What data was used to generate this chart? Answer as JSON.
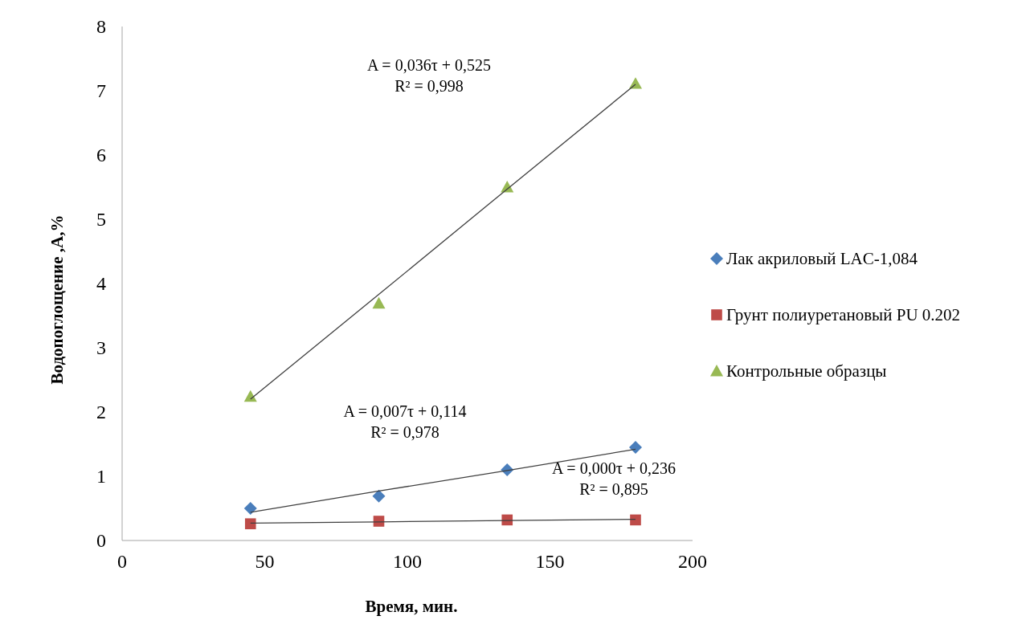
{
  "chart_data": {
    "type": "scatter",
    "xlabel": "Время, мин.",
    "ylabel": "Водопоглощение ,А,%",
    "xlim": [
      0,
      200
    ],
    "xticks": [
      0,
      50,
      100,
      150,
      200
    ],
    "ylim": [
      0,
      8
    ],
    "yticks": [
      0,
      1,
      2,
      3,
      4,
      5,
      6,
      7,
      8
    ],
    "grid": false,
    "legend": "right",
    "x": [
      45,
      90,
      135,
      180
    ],
    "series": [
      {
        "name": "Лак акриловый LAC-1,084",
        "color": "#4a7ebb",
        "marker": "diamond",
        "values": [
          0.5,
          0.69,
          1.1,
          1.45
        ]
      },
      {
        "name": "Грунт полиуретановый  PU 0.202",
        "color": "#be4b48",
        "marker": "square",
        "values": [
          0.26,
          0.3,
          0.32,
          0.32
        ]
      },
      {
        "name": "Контрольные образцы",
        "color": "#98b954",
        "marker": "triangle",
        "values": [
          2.24,
          3.69,
          5.5,
          7.11
        ]
      },
      {
        "type": "line",
        "color": "#404040",
        "marker": "none",
        "values": [
          2.2,
          3.83,
          5.47,
          7.1
        ]
      },
      {
        "type": "line",
        "color": "#404040",
        "marker": "none",
        "values": [
          0.44,
          0.77,
          1.09,
          1.42
        ]
      },
      {
        "type": "line",
        "color": "#404040",
        "marker": "none",
        "values": [
          0.27,
          0.29,
          0.31,
          0.33
        ]
      }
    ],
    "annotations": [
      "A = 0,036τ + 0,525\nR² = 0,998",
      "A = 0,007τ + 0,114\nR² = 0,978",
      "A = 0,000τ + 0,236\nR² = 0,895"
    ]
  }
}
